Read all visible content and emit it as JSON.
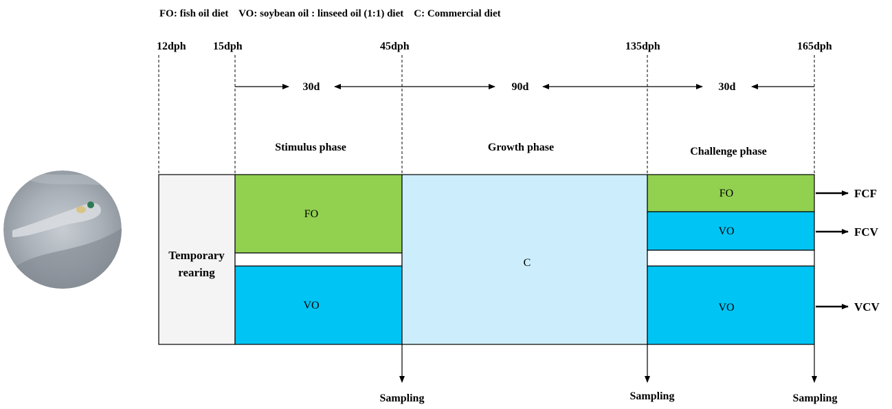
{
  "legend": "FO: fish oil diet    VO: soybean oil : linseed oil (1:1) diet    C: Commercial diet",
  "timepoints": [
    "12dph",
    "15dph",
    "45dph",
    "135dph",
    "165dph"
  ],
  "durations": [
    "30d",
    "90d",
    "30d"
  ],
  "phases": [
    "Stimulus phase",
    "Growth phase",
    "Challenge phase"
  ],
  "rearing": [
    "Temporary",
    "rearing"
  ],
  "blocks": {
    "stimulus_fo": "FO",
    "stimulus_vo": "VO",
    "growth_c": "C",
    "challenge_fo": "FO",
    "challenge_vo1": "VO",
    "challenge_vo2": "VO"
  },
  "outcomes": [
    "FCF",
    "FCV",
    "VCV"
  ],
  "sampling": "Sampling",
  "colors": {
    "fo": "#92d050",
    "vo": "#00c4f3",
    "c": "#cceefc",
    "rearing_bg": "#f4f4f4"
  },
  "image": "fish-larva-photo"
}
